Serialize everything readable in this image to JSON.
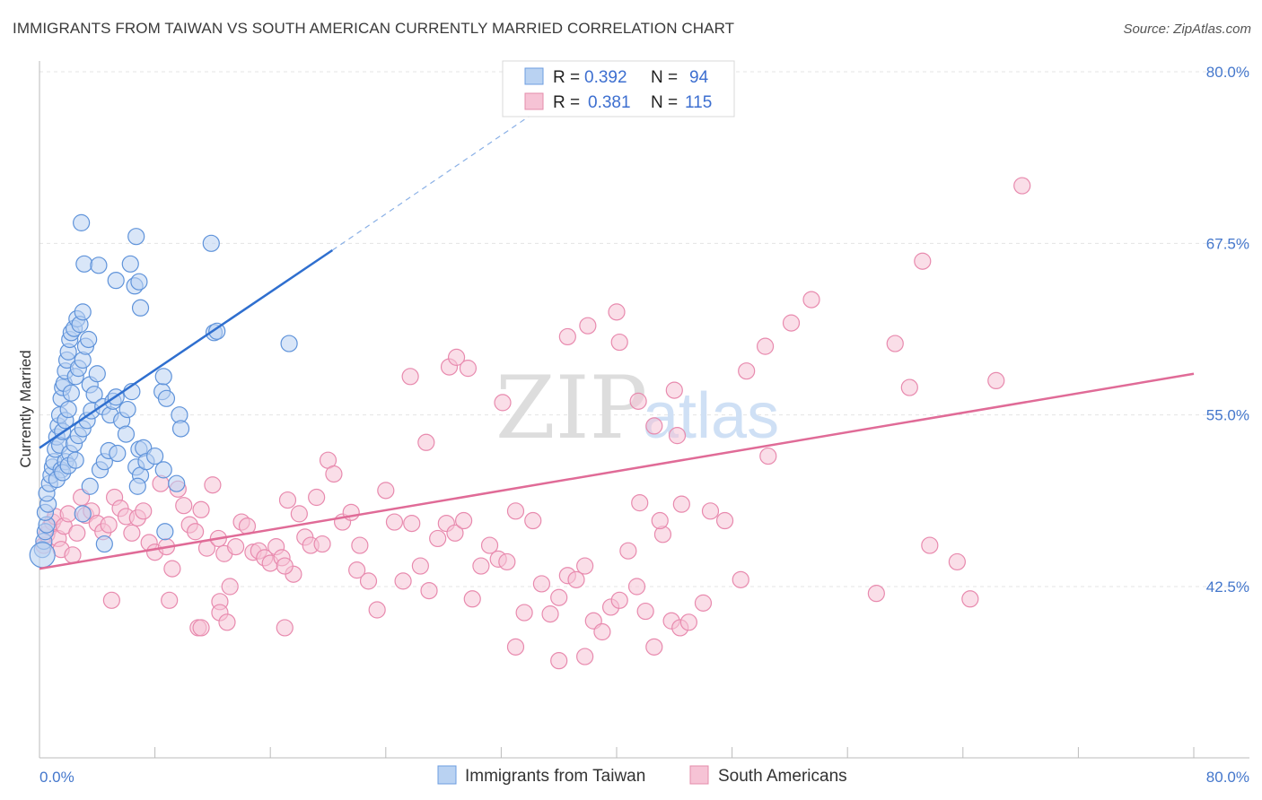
{
  "title": "IMMIGRANTS FROM TAIWAN VS SOUTH AMERICAN CURRENTLY MARRIED CORRELATION CHART",
  "source": "Source: ZipAtlas.com",
  "watermark": {
    "zip": "ZIP",
    "atlas": "atlas"
  },
  "colors": {
    "blue": "#4a86d8",
    "blue_fill": "#b9d2f2",
    "pink": "#e07098",
    "pink_fill": "#f6c3d5",
    "axis_text": "#4477cc",
    "grid": "#e4e4e4"
  },
  "chart_data": {
    "type": "scatter",
    "xlabel": "",
    "ylabel": "Currently Married",
    "xlim": [
      0,
      80
    ],
    "ylim": [
      32.5,
      82
    ],
    "x_tick_labels": [
      {
        "value": 0,
        "label": "0.0%"
      },
      {
        "value": 80,
        "label": "80.0%"
      }
    ],
    "y_ticks": [
      {
        "value": 42.5,
        "label": "42.5%"
      },
      {
        "value": 55.0,
        "label": "55.0%"
      },
      {
        "value": 67.5,
        "label": "67.5%"
      },
      {
        "value": 80.0,
        "label": "80.0%"
      }
    ],
    "legend": {
      "entries": [
        {
          "r_label": "R =",
          "r_value": "0.392",
          "n_label": "N =",
          "n_value": "94"
        },
        {
          "r_label": "R =",
          "r_value": "0.381",
          "n_label": "N =",
          "n_value": "115"
        }
      ]
    },
    "series": [
      {
        "name": "Immigrants from Taiwan",
        "color": "#4a86d8",
        "trend": {
          "x0": 0,
          "y0": 52.6,
          "x1": 20.3,
          "y1": 67.0,
          "dash_to_x": 34.0,
          "dash_to_y": 76.8
        },
        "points": [
          [
            0.2,
            45.2
          ],
          [
            0.3,
            45.8
          ],
          [
            0.4,
            46.5
          ],
          [
            0.5,
            47.0
          ],
          [
            0.4,
            47.9
          ],
          [
            0.6,
            48.5
          ],
          [
            0.5,
            49.3
          ],
          [
            0.7,
            50.0
          ],
          [
            0.8,
            50.6
          ],
          [
            0.9,
            51.2
          ],
          [
            1.0,
            51.6
          ],
          [
            1.1,
            52.5
          ],
          [
            1.2,
            53.4
          ],
          [
            1.3,
            54.2
          ],
          [
            1.4,
            55.0
          ],
          [
            1.5,
            56.2
          ],
          [
            1.6,
            57.0
          ],
          [
            1.7,
            57.3
          ],
          [
            1.8,
            58.2
          ],
          [
            1.9,
            59.0
          ],
          [
            2.0,
            59.6
          ],
          [
            2.1,
            60.5
          ],
          [
            2.2,
            61.0
          ],
          [
            2.4,
            61.3
          ],
          [
            2.6,
            62.0
          ],
          [
            2.8,
            61.6
          ],
          [
            3.0,
            62.5
          ],
          [
            1.4,
            52.8
          ],
          [
            1.6,
            53.8
          ],
          [
            1.8,
            54.6
          ],
          [
            2.0,
            55.4
          ],
          [
            2.2,
            56.6
          ],
          [
            2.5,
            57.8
          ],
          [
            2.7,
            58.4
          ],
          [
            3.0,
            59.0
          ],
          [
            3.2,
            60.0
          ],
          [
            3.4,
            60.5
          ],
          [
            1.5,
            51.0
          ],
          [
            1.8,
            51.6
          ],
          [
            2.1,
            52.2
          ],
          [
            2.4,
            52.9
          ],
          [
            2.7,
            53.5
          ],
          [
            3.0,
            54.0
          ],
          [
            3.3,
            54.6
          ],
          [
            3.6,
            55.3
          ],
          [
            1.2,
            50.3
          ],
          [
            1.6,
            50.8
          ],
          [
            2.0,
            51.3
          ],
          [
            2.5,
            51.7
          ],
          [
            3.5,
            57.2
          ],
          [
            3.8,
            56.5
          ],
          [
            4.0,
            58.0
          ],
          [
            4.4,
            55.6
          ],
          [
            4.9,
            55.0
          ],
          [
            5.1,
            56.0
          ],
          [
            5.3,
            56.3
          ],
          [
            5.7,
            54.6
          ],
          [
            6.1,
            55.4
          ],
          [
            6.4,
            56.7
          ],
          [
            3.5,
            49.8
          ],
          [
            4.2,
            51.0
          ],
          [
            4.5,
            51.6
          ],
          [
            4.8,
            52.4
          ],
          [
            5.4,
            52.2
          ],
          [
            6.0,
            53.6
          ],
          [
            6.7,
            51.2
          ],
          [
            6.9,
            52.5
          ],
          [
            7.2,
            52.6
          ],
          [
            7.0,
            50.6
          ],
          [
            6.8,
            49.8
          ],
          [
            7.4,
            51.6
          ],
          [
            8.0,
            52.0
          ],
          [
            8.6,
            51.0
          ],
          [
            9.5,
            50.0
          ],
          [
            2.9,
            69.0
          ],
          [
            3.1,
            66.0
          ],
          [
            4.1,
            65.9
          ],
          [
            5.3,
            64.8
          ],
          [
            6.3,
            66.0
          ],
          [
            6.6,
            64.4
          ],
          [
            6.9,
            64.7
          ],
          [
            7.0,
            62.8
          ],
          [
            6.7,
            68.0
          ],
          [
            8.5,
            56.7
          ],
          [
            8.8,
            56.2
          ],
          [
            9.7,
            55.0
          ],
          [
            9.8,
            54.0
          ],
          [
            11.9,
            67.5
          ],
          [
            12.1,
            61.0
          ],
          [
            12.3,
            61.1
          ],
          [
            17.3,
            60.2
          ],
          [
            8.6,
            57.8
          ],
          [
            3.0,
            47.8
          ],
          [
            4.5,
            45.6
          ],
          [
            8.7,
            46.5
          ]
        ]
      },
      {
        "name": "South Americans",
        "color": "#e07098",
        "trend": {
          "x0": 0,
          "y0": 43.8,
          "x1": 80,
          "y1": 58.0
        },
        "points": [
          [
            0.3,
            45.5
          ],
          [
            0.5,
            46.3
          ],
          [
            0.7,
            46.8
          ],
          [
            0.9,
            47.2
          ],
          [
            1.1,
            47.6
          ],
          [
            1.3,
            46.0
          ],
          [
            1.5,
            45.2
          ],
          [
            1.7,
            46.9
          ],
          [
            2.0,
            47.8
          ],
          [
            2.3,
            44.8
          ],
          [
            2.6,
            46.4
          ],
          [
            2.9,
            49.0
          ],
          [
            3.2,
            47.7
          ],
          [
            3.6,
            48.0
          ],
          [
            4.0,
            47.1
          ],
          [
            4.4,
            46.5
          ],
          [
            4.8,
            47.0
          ],
          [
            5.2,
            49.0
          ],
          [
            5.6,
            48.2
          ],
          [
            6.0,
            47.6
          ],
          [
            6.4,
            46.4
          ],
          [
            6.8,
            47.5
          ],
          [
            7.2,
            48.0
          ],
          [
            7.6,
            45.7
          ],
          [
            8.0,
            45.0
          ],
          [
            8.4,
            50.0
          ],
          [
            8.8,
            45.4
          ],
          [
            9.2,
            43.8
          ],
          [
            9.6,
            49.6
          ],
          [
            10.0,
            48.4
          ],
          [
            10.4,
            47.0
          ],
          [
            10.8,
            46.5
          ],
          [
            11.2,
            48.1
          ],
          [
            11.6,
            45.3
          ],
          [
            12.0,
            49.9
          ],
          [
            12.4,
            46.0
          ],
          [
            12.8,
            44.9
          ],
          [
            13.2,
            42.5
          ],
          [
            13.6,
            45.4
          ],
          [
            14.0,
            47.2
          ],
          [
            14.4,
            46.9
          ],
          [
            14.8,
            45.0
          ],
          [
            15.2,
            45.1
          ],
          [
            15.6,
            44.6
          ],
          [
            16.0,
            44.2
          ],
          [
            16.4,
            45.4
          ],
          [
            16.8,
            44.6
          ],
          [
            17.2,
            48.8
          ],
          [
            17.6,
            43.4
          ],
          [
            18.0,
            47.8
          ],
          [
            18.4,
            46.1
          ],
          [
            18.8,
            45.5
          ],
          [
            19.2,
            49.0
          ],
          [
            19.6,
            45.6
          ],
          [
            20.0,
            51.7
          ],
          [
            20.4,
            50.7
          ],
          [
            21.0,
            47.2
          ],
          [
            21.6,
            47.9
          ],
          [
            22.2,
            45.5
          ],
          [
            22.8,
            42.9
          ],
          [
            23.4,
            40.8
          ],
          [
            24.0,
            49.5
          ],
          [
            24.6,
            47.2
          ],
          [
            25.2,
            42.9
          ],
          [
            25.8,
            47.1
          ],
          [
            26.4,
            44.0
          ],
          [
            27.0,
            42.2
          ],
          [
            27.6,
            46.0
          ],
          [
            28.2,
            47.1
          ],
          [
            28.8,
            46.4
          ],
          [
            29.4,
            47.3
          ],
          [
            30.0,
            41.6
          ],
          [
            30.6,
            44.0
          ],
          [
            31.2,
            45.5
          ],
          [
            31.8,
            44.5
          ],
          [
            32.4,
            44.3
          ],
          [
            33.0,
            48.0
          ],
          [
            33.6,
            40.6
          ],
          [
            34.2,
            47.3
          ],
          [
            34.8,
            42.7
          ],
          [
            35.4,
            40.5
          ],
          [
            36.0,
            41.7
          ],
          [
            36.6,
            43.3
          ],
          [
            37.2,
            43.0
          ],
          [
            37.8,
            44.0
          ],
          [
            38.4,
            40.0
          ],
          [
            39.0,
            39.2
          ],
          [
            39.6,
            41.0
          ],
          [
            40.2,
            41.5
          ],
          [
            40.8,
            45.1
          ],
          [
            41.4,
            42.5
          ],
          [
            42.0,
            40.7
          ],
          [
            42.6,
            38.1
          ],
          [
            43.2,
            46.3
          ],
          [
            43.8,
            40.0
          ],
          [
            44.4,
            39.5
          ],
          [
            45.0,
            39.9
          ],
          [
            17.0,
            44.0
          ],
          [
            22.0,
            43.7
          ],
          [
            9.0,
            41.5
          ],
          [
            11.0,
            39.5
          ],
          [
            12.5,
            41.4
          ],
          [
            5.0,
            41.5
          ],
          [
            17.0,
            39.5
          ],
          [
            28.4,
            58.5
          ],
          [
            28.9,
            59.2
          ],
          [
            32.1,
            55.9
          ],
          [
            26.8,
            53.0
          ],
          [
            36.6,
            60.7
          ],
          [
            38.0,
            61.5
          ],
          [
            40.0,
            62.5
          ],
          [
            41.5,
            56.0
          ],
          [
            44.0,
            56.8
          ],
          [
            25.7,
            57.8
          ],
          [
            29.7,
            58.4
          ],
          [
            40.2,
            60.3
          ],
          [
            42.6,
            54.2
          ],
          [
            44.2,
            53.5
          ],
          [
            50.3,
            60.0
          ],
          [
            59.3,
            60.2
          ],
          [
            60.3,
            57.0
          ],
          [
            61.2,
            66.2
          ],
          [
            66.3,
            57.5
          ],
          [
            68.1,
            71.7
          ],
          [
            52.1,
            61.7
          ],
          [
            53.5,
            63.4
          ],
          [
            61.7,
            45.5
          ],
          [
            63.6,
            44.3
          ],
          [
            64.5,
            41.6
          ],
          [
            50.5,
            52.0
          ],
          [
            49.0,
            58.2
          ],
          [
            41.6,
            48.6
          ],
          [
            43.0,
            47.3
          ],
          [
            44.5,
            48.5
          ],
          [
            46.5,
            48.0
          ],
          [
            47.5,
            47.3
          ],
          [
            36.0,
            37.1
          ],
          [
            33.0,
            38.1
          ],
          [
            37.8,
            37.4
          ],
          [
            48.6,
            43.0
          ],
          [
            46.0,
            41.3
          ],
          [
            58.0,
            42.0
          ],
          [
            11.2,
            39.5
          ],
          [
            12.5,
            40.6
          ],
          [
            13.0,
            39.9
          ]
        ]
      }
    ]
  },
  "bottom_legend": [
    {
      "label": "Immigrants from Taiwan"
    },
    {
      "label": "South Americans"
    }
  ]
}
